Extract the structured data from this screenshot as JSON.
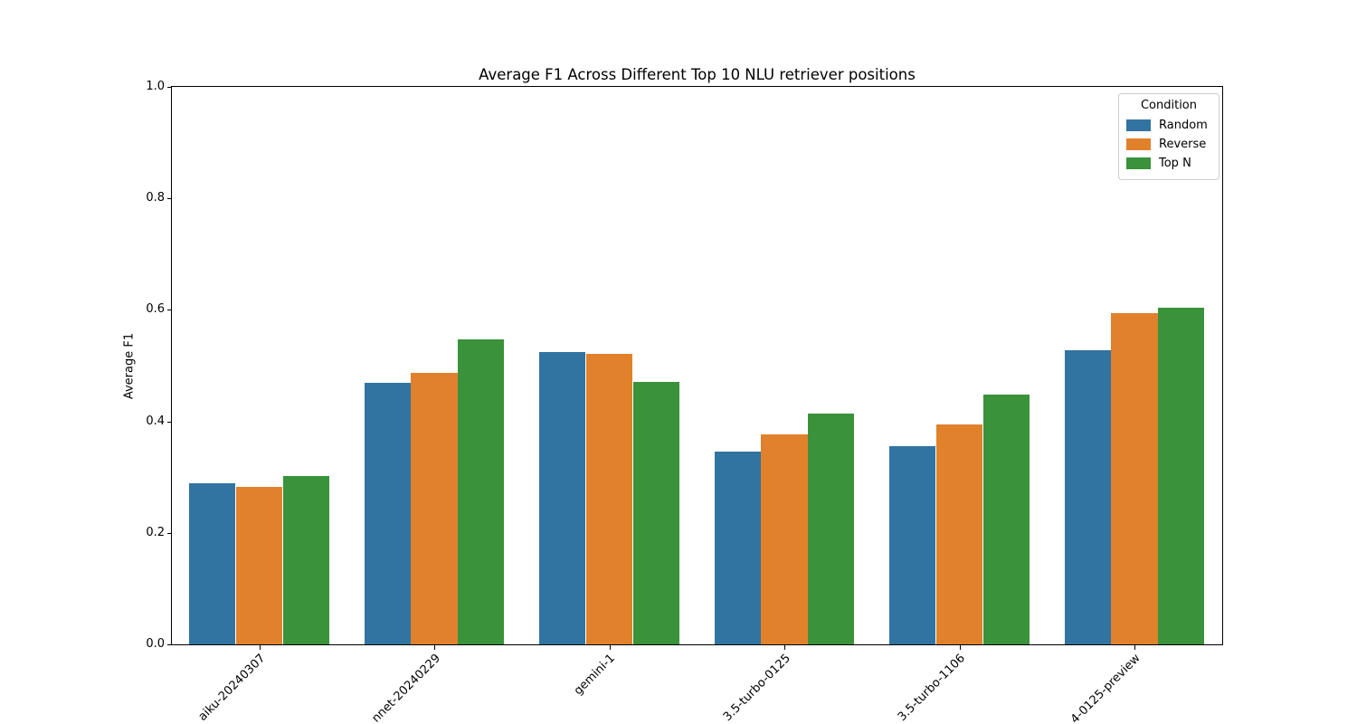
{
  "chart_data": {
    "type": "bar",
    "title": "Average F1 Across Different Top 10 NLU retriever positions",
    "xlabel": "",
    "ylabel": "Average F1",
    "categories": [
      "aiku-20240307",
      "nnet-20240229",
      "gemini-1",
      "3.5-turbo-0125",
      "3.5-turbo-1106",
      "4-0125-preview"
    ],
    "series": [
      {
        "name": "Random",
        "color": "#3274a1",
        "values": [
          0.289,
          0.469,
          0.524,
          0.346,
          0.355,
          0.528
        ]
      },
      {
        "name": "Reverse",
        "color": "#e1812c",
        "values": [
          0.283,
          0.487,
          0.521,
          0.377,
          0.394,
          0.594
        ]
      },
      {
        "name": "Top N",
        "color": "#3a923a",
        "values": [
          0.302,
          0.547,
          0.471,
          0.414,
          0.448,
          0.604
        ]
      }
    ],
    "ylim": [
      0.0,
      1.0
    ],
    "yticks": [
      0.0,
      0.2,
      0.4,
      0.6,
      0.8,
      1.0
    ],
    "ytick_labels": [
      "0.0",
      "0.2",
      "0.4",
      "0.6",
      "0.8",
      "1.0"
    ],
    "xtick_rotation_deg": 45,
    "grid": false,
    "legend": {
      "title": "Condition",
      "position": "upper right"
    }
  }
}
